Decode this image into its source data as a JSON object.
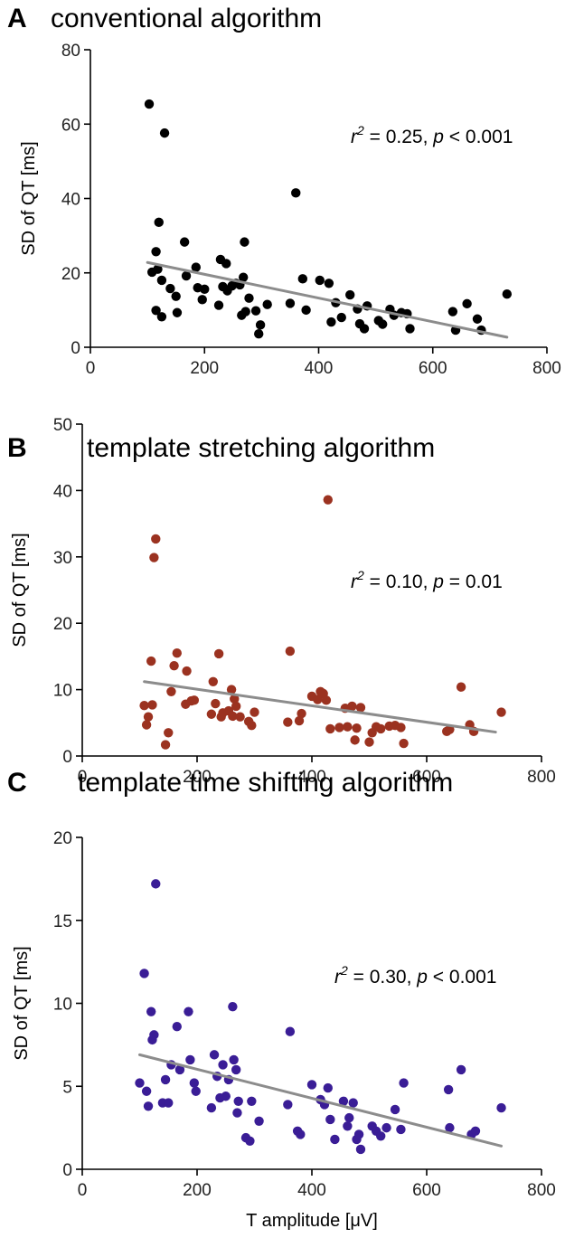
{
  "chart_data": [
    {
      "type": "scatter",
      "letter": "A",
      "title": "conventional algorithm",
      "xlabel": "",
      "ylabel": "SD of QT [ms]",
      "xlim": [
        0,
        800
      ],
      "ylim": [
        0,
        80
      ],
      "xticks": [
        0,
        200,
        400,
        600,
        800
      ],
      "yticks": [
        0,
        20,
        40,
        60,
        80
      ],
      "color": "#000000",
      "stat": {
        "r_sym": "r",
        "r_exp": "2",
        "r_val": " = 0.25, ",
        "p_sym": "p",
        "p_val": " < 0.001"
      },
      "fit": {
        "x": [
          100,
          730
        ],
        "y": [
          22.8,
          2.7
        ]
      },
      "points": [
        [
          103,
          65.4
        ],
        [
          130,
          57.6
        ],
        [
          360,
          41.5
        ],
        [
          120,
          33.6
        ],
        [
          115,
          25.7
        ],
        [
          165,
          28.3
        ],
        [
          270,
          28.3
        ],
        [
          108,
          20.2
        ],
        [
          118,
          21.0
        ],
        [
          125,
          18.0
        ],
        [
          140,
          15.8
        ],
        [
          150,
          13.7
        ],
        [
          168,
          19.2
        ],
        [
          185,
          21.5
        ],
        [
          188,
          16.0
        ],
        [
          200,
          15.6
        ],
        [
          196,
          12.8
        ],
        [
          115,
          9.9
        ],
        [
          125,
          8.2
        ],
        [
          152,
          9.3
        ],
        [
          228,
          23.6
        ],
        [
          238,
          22.5
        ],
        [
          248,
          16.5
        ],
        [
          255,
          17.2
        ],
        [
          262,
          16.8
        ],
        [
          268,
          18.8
        ],
        [
          232,
          16.3
        ],
        [
          225,
          11.3
        ],
        [
          240,
          15.2
        ],
        [
          278,
          13.2
        ],
        [
          272,
          9.6
        ],
        [
          265,
          8.6
        ],
        [
          290,
          9.8
        ],
        [
          298,
          6.0
        ],
        [
          295,
          3.6
        ],
        [
          310,
          11.5
        ],
        [
          350,
          11.8
        ],
        [
          372,
          18.4
        ],
        [
          378,
          10.0
        ],
        [
          402,
          18.0
        ],
        [
          418,
          17.2
        ],
        [
          430,
          12.0
        ],
        [
          440,
          8.0
        ],
        [
          422,
          6.8
        ],
        [
          455,
          14.1
        ],
        [
          468,
          10.3
        ],
        [
          472,
          6.3
        ],
        [
          480,
          5.0
        ],
        [
          485,
          11.1
        ],
        [
          505,
          7.2
        ],
        [
          512,
          6.2
        ],
        [
          525,
          10.2
        ],
        [
          532,
          8.6
        ],
        [
          545,
          9.3
        ],
        [
          555,
          9.0
        ],
        [
          560,
          5.0
        ],
        [
          635,
          9.6
        ],
        [
          640,
          4.6
        ],
        [
          660,
          11.7
        ],
        [
          678,
          7.6
        ],
        [
          685,
          4.6
        ],
        [
          730,
          14.3
        ]
      ]
    },
    {
      "type": "scatter",
      "letter": "B",
      "title": "template stretching algorithm",
      "xlabel": "",
      "ylabel": "SD of QT [ms]",
      "xlim": [
        0,
        800
      ],
      "ylim": [
        0,
        50
      ],
      "xticks": [
        0,
        200,
        400,
        600,
        800
      ],
      "yticks": [
        0,
        10,
        20,
        30,
        40,
        50
      ],
      "color": "#9b3220",
      "stat": {
        "r_sym": "r",
        "r_exp": "2",
        "r_val": " = 0.10, ",
        "p_sym": "p",
        "p_val": " = 0.01"
      },
      "fit": {
        "x": [
          108,
          720
        ],
        "y": [
          11.2,
          3.6
        ]
      },
      "points": [
        [
          128,
          32.7
        ],
        [
          125,
          29.9
        ],
        [
          428,
          38.6
        ],
        [
          120,
          14.3
        ],
        [
          108,
          7.6
        ],
        [
          122,
          7.7
        ],
        [
          112,
          4.7
        ],
        [
          115,
          5.9
        ],
        [
          145,
          1.7
        ],
        [
          150,
          3.5
        ],
        [
          155,
          9.7
        ],
        [
          160,
          13.6
        ],
        [
          165,
          15.5
        ],
        [
          180,
          7.8
        ],
        [
          182,
          12.8
        ],
        [
          190,
          8.3
        ],
        [
          195,
          8.4
        ],
        [
          225,
          6.3
        ],
        [
          228,
          11.2
        ],
        [
          232,
          7.9
        ],
        [
          238,
          15.4
        ],
        [
          242,
          5.9
        ],
        [
          245,
          6.5
        ],
        [
          255,
          6.8
        ],
        [
          260,
          10.0
        ],
        [
          262,
          6.0
        ],
        [
          265,
          8.6
        ],
        [
          268,
          7.5
        ],
        [
          275,
          5.9
        ],
        [
          290,
          5.2
        ],
        [
          295,
          4.6
        ],
        [
          300,
          6.6
        ],
        [
          358,
          5.1
        ],
        [
          362,
          15.8
        ],
        [
          378,
          5.3
        ],
        [
          382,
          6.4
        ],
        [
          400,
          9.0
        ],
        [
          410,
          8.5
        ],
        [
          415,
          9.7
        ],
        [
          420,
          9.4
        ],
        [
          425,
          8.4
        ],
        [
          432,
          4.1
        ],
        [
          448,
          4.3
        ],
        [
          458,
          7.2
        ],
        [
          462,
          4.4
        ],
        [
          470,
          7.5
        ],
        [
          475,
          2.4
        ],
        [
          478,
          4.2
        ],
        [
          485,
          7.3
        ],
        [
          500,
          2.1
        ],
        [
          505,
          3.5
        ],
        [
          512,
          4.4
        ],
        [
          520,
          4.1
        ],
        [
          535,
          4.5
        ],
        [
          545,
          4.6
        ],
        [
          555,
          4.3
        ],
        [
          560,
          1.9
        ],
        [
          635,
          3.7
        ],
        [
          640,
          4.0
        ],
        [
          660,
          10.4
        ],
        [
          675,
          4.7
        ],
        [
          682,
          3.7
        ],
        [
          730,
          6.6
        ]
      ]
    },
    {
      "type": "scatter",
      "letter": "C",
      "title": "template time shifting algorithm",
      "xlabel": "T amplitude [μV]",
      "ylabel": "SD of QT [ms]",
      "xlim": [
        0,
        800
      ],
      "ylim": [
        0,
        20
      ],
      "xticks": [
        0,
        200,
        400,
        600,
        800
      ],
      "yticks": [
        0,
        5,
        10,
        15,
        20
      ],
      "color": "#3a1d96",
      "stat": {
        "r_sym": "r",
        "r_exp": "2",
        "r_val": " = 0.30,  ",
        "p_sym": "p",
        "p_val": " < 0.001"
      },
      "fit": {
        "x": [
          100,
          730
        ],
        "y": [
          6.9,
          1.4
        ]
      },
      "points": [
        [
          128,
          17.2
        ],
        [
          108,
          11.8
        ],
        [
          120,
          9.5
        ],
        [
          122,
          7.8
        ],
        [
          125,
          8.1
        ],
        [
          100,
          5.2
        ],
        [
          112,
          4.7
        ],
        [
          115,
          3.8
        ],
        [
          140,
          4.0
        ],
        [
          150,
          4.0
        ],
        [
          145,
          5.4
        ],
        [
          155,
          6.3
        ],
        [
          165,
          8.6
        ],
        [
          170,
          6.0
        ],
        [
          185,
          9.5
        ],
        [
          188,
          6.6
        ],
        [
          195,
          5.2
        ],
        [
          198,
          4.7
        ],
        [
          225,
          3.7
        ],
        [
          230,
          6.9
        ],
        [
          235,
          5.6
        ],
        [
          240,
          4.3
        ],
        [
          245,
          6.3
        ],
        [
          250,
          4.4
        ],
        [
          255,
          5.4
        ],
        [
          262,
          9.8
        ],
        [
          264,
          6.6
        ],
        [
          268,
          6.0
        ],
        [
          272,
          4.1
        ],
        [
          270,
          3.4
        ],
        [
          285,
          1.9
        ],
        [
          292,
          1.7
        ],
        [
          295,
          4.1
        ],
        [
          308,
          2.9
        ],
        [
          358,
          3.9
        ],
        [
          362,
          8.3
        ],
        [
          375,
          2.3
        ],
        [
          380,
          2.1
        ],
        [
          400,
          5.1
        ],
        [
          415,
          4.2
        ],
        [
          422,
          3.9
        ],
        [
          428,
          4.9
        ],
        [
          432,
          3.0
        ],
        [
          440,
          1.8
        ],
        [
          455,
          4.1
        ],
        [
          462,
          2.6
        ],
        [
          465,
          3.1
        ],
        [
          472,
          4.0
        ],
        [
          478,
          1.8
        ],
        [
          482,
          2.1
        ],
        [
          485,
          1.2
        ],
        [
          505,
          2.6
        ],
        [
          512,
          2.3
        ],
        [
          520,
          2.0
        ],
        [
          530,
          2.5
        ],
        [
          545,
          3.6
        ],
        [
          555,
          2.4
        ],
        [
          560,
          5.2
        ],
        [
          638,
          4.8
        ],
        [
          640,
          2.5
        ],
        [
          660,
          6.0
        ],
        [
          678,
          2.1
        ],
        [
          685,
          2.3
        ],
        [
          730,
          3.7
        ]
      ]
    }
  ]
}
